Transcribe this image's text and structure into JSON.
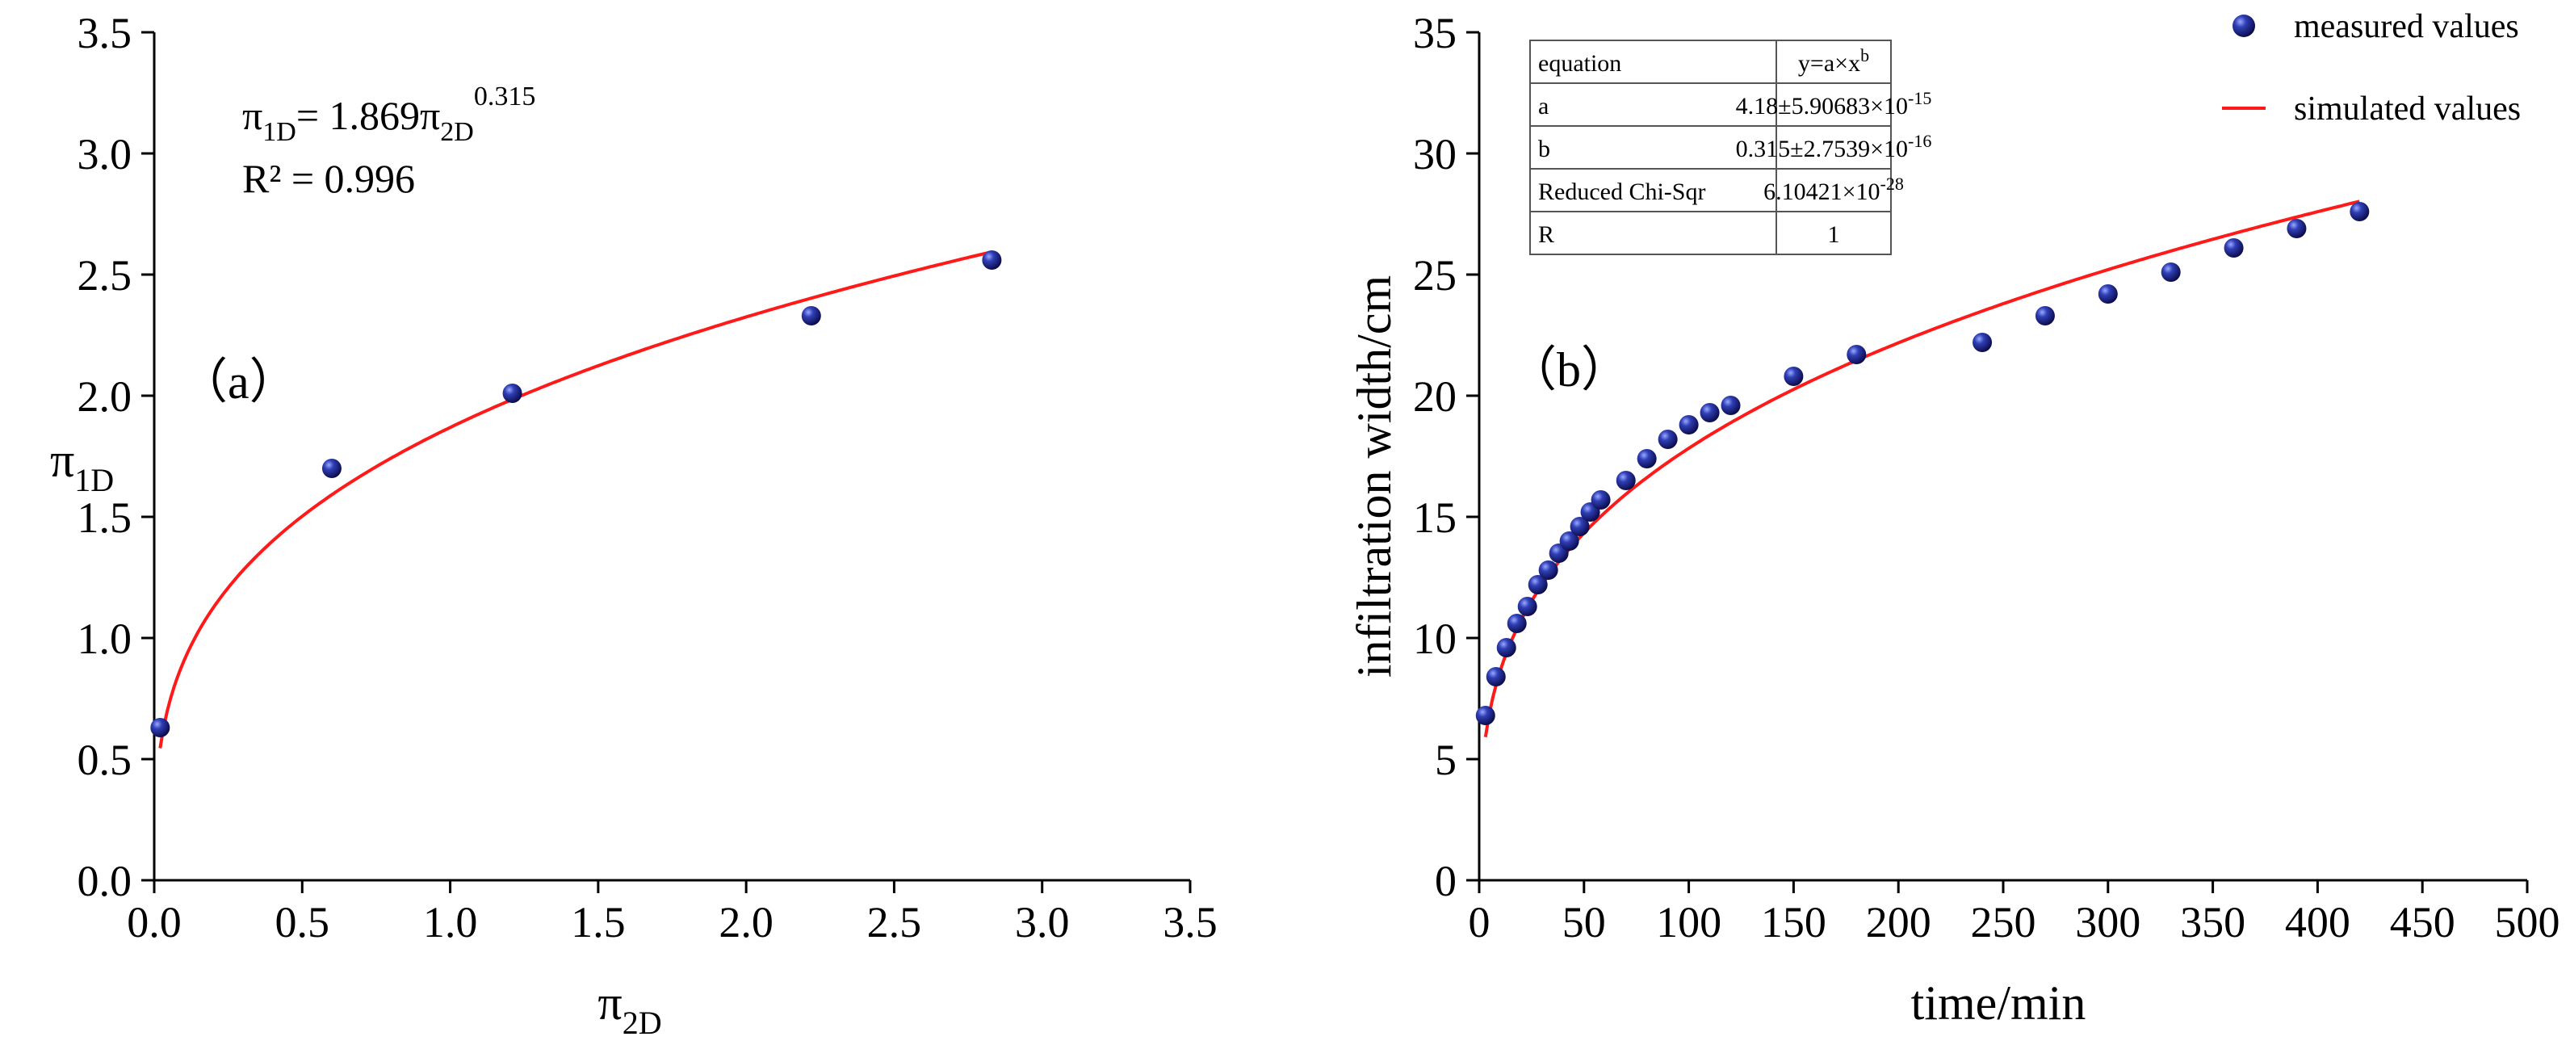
{
  "chart_data": [
    {
      "id": "a",
      "type": "scatter",
      "panel_label": "（a）",
      "xlabel": {
        "base": "π",
        "sub": "2D"
      },
      "ylabel": {
        "base": "π",
        "sub": "1D"
      },
      "xlim": [
        0,
        3.5
      ],
      "ylim": [
        0,
        3.5
      ],
      "xticks": [
        "0.0",
        "0.5",
        "1.0",
        "1.5",
        "2.0",
        "2.5",
        "3.0",
        "3.5"
      ],
      "yticks": [
        "0.0",
        "0.5",
        "1.0",
        "1.5",
        "2.0",
        "2.5",
        "3.0",
        "3.5"
      ],
      "equation": {
        "lhs": "π",
        "lhs_sub": "1D",
        "mid": "= 1.869π",
        "mid_sub": "2D",
        "exp": "0.315"
      },
      "r2": "R² = 0.996",
      "fit": {
        "a": 1.869,
        "b": 0.315,
        "x_range": [
          0.02,
          2.83
        ]
      },
      "series": [
        {
          "name": "measured",
          "x": [
            0.02,
            0.6,
            1.21,
            2.22,
            2.83
          ],
          "y": [
            0.63,
            1.7,
            2.01,
            2.33,
            2.56
          ]
        }
      ],
      "colors": {
        "points": "#1e1e8c",
        "fit": "#ff1a1a"
      }
    },
    {
      "id": "b",
      "type": "scatter",
      "panel_label": "（b）",
      "xlabel": "time/min",
      "ylabel": "infiltration width/cm",
      "xlim": [
        0,
        500
      ],
      "ylim": [
        0,
        35
      ],
      "xticks": [
        "0",
        "50",
        "100",
        "150",
        "200",
        "250",
        "300",
        "350",
        "400",
        "450",
        "500"
      ],
      "yticks": [
        "0",
        "5",
        "10",
        "15",
        "20",
        "25",
        "30",
        "35"
      ],
      "legend": {
        "measured": "measured values",
        "simulated": "simulated values"
      },
      "fit": {
        "a": 4.18,
        "b": 0.315,
        "x_range": [
          3,
          420
        ]
      },
      "table": [
        {
          "key": "equation",
          "val": "y=a×x",
          "sup": "b"
        },
        {
          "key": "a",
          "val": "4.18±5.90683×10",
          "sup": "-15"
        },
        {
          "key": "b",
          "val": "0.315±2.7539×10",
          "sup": "-16"
        },
        {
          "key": "Reduced Chi-Sqr",
          "val": "6.10421×10",
          "sup": "-28"
        },
        {
          "key": "R",
          "val": "1",
          "sup": ""
        }
      ],
      "series": [
        {
          "name": "measured values",
          "x": [
            3,
            8,
            13,
            18,
            23,
            28,
            33,
            38,
            43,
            48,
            53,
            58,
            70,
            80,
            90,
            100,
            110,
            120,
            150,
            180,
            240,
            270,
            300,
            330,
            360,
            390,
            420
          ],
          "y": [
            6.8,
            8.4,
            9.6,
            10.6,
            11.3,
            12.2,
            12.8,
            13.5,
            14.0,
            14.6,
            15.2,
            15.7,
            16.5,
            17.4,
            18.2,
            18.8,
            19.3,
            19.6,
            20.8,
            21.7,
            22.2,
            23.3,
            24.2,
            25.1,
            26.1,
            26.9,
            27.6
          ]
        }
      ],
      "colors": {
        "points": "#1e1e8c",
        "fit": "#ff1a1a"
      }
    }
  ]
}
